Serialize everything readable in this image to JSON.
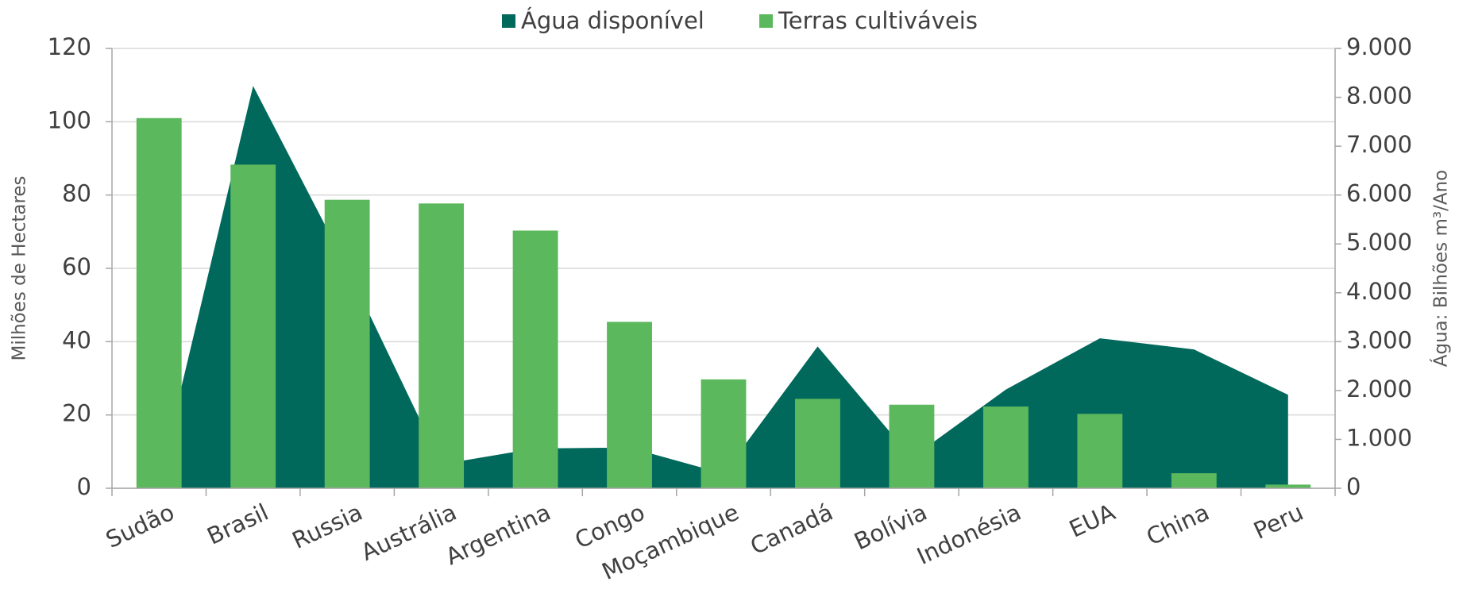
{
  "chart_data": {
    "type": "bar-area",
    "categories": [
      "Sudão",
      "Brasil",
      "Russia",
      "Austrália",
      "Argentina",
      "Congo",
      "Moçambique",
      "Canadá",
      "Bolívia",
      "Indonésia",
      "EUA",
      "China",
      "Peru"
    ],
    "series": [
      {
        "name": "Água disponível",
        "color": "#00695c",
        "type": "area",
        "axis": "y2",
        "values": [
          150,
          8233,
          4508,
          492,
          814,
          832,
          300,
          2902,
          623,
          2019,
          3069,
          2840,
          1913
        ]
      },
      {
        "name": "Terras cultiváveis",
        "color": "#5cb85c",
        "type": "bar",
        "axis": "y",
        "values": [
          101,
          88.3,
          78.7,
          77.7,
          70.3,
          45.4,
          29.7,
          24.4,
          22.8,
          22.3,
          20.3,
          4.1,
          1.0
        ]
      }
    ],
    "ylabel": "Milhões de Hectares",
    "y2label": "Água: Bilhões m³/Ano",
    "ylim": [
      0,
      120
    ],
    "yticks": [
      0,
      20,
      40,
      60,
      80,
      100,
      120
    ],
    "y2lim": [
      0,
      9000
    ],
    "y2ticks": [
      0,
      {
        "value": 1000,
        "label": "1.000"
      },
      {
        "value": 2000,
        "label": "2.000"
      },
      {
        "value": 3000,
        "label": "3.000"
      },
      {
        "value": 4000,
        "label": "4.000"
      },
      {
        "value": 5000,
        "label": "5.000"
      },
      {
        "value": 6000,
        "label": "6.000"
      },
      {
        "value": 7000,
        "label": "7.000"
      },
      {
        "value": 8000,
        "label": "8.000"
      },
      {
        "value": 9000,
        "label": "9.000"
      }
    ],
    "grid": true,
    "legend": "top"
  }
}
